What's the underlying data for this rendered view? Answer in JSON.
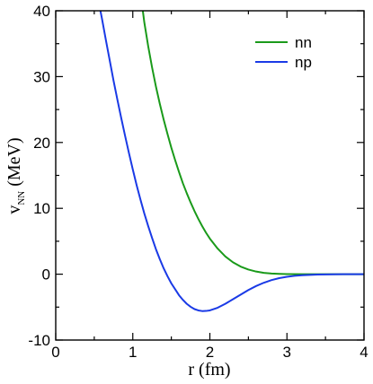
{
  "chart_data": {
    "type": "line",
    "title": "",
    "xlabel": "r (fm)",
    "ylabel_main": "v",
    "ylabel_sub": "NN",
    "ylabel_unit": " (MeV)",
    "xlim": [
      0,
      4
    ],
    "ylim": [
      -10,
      40
    ],
    "x_ticks": [
      0,
      1,
      2,
      3,
      4
    ],
    "y_ticks": [
      -10,
      0,
      10,
      20,
      30,
      40
    ],
    "x_minor_step": 0.5,
    "y_minor_step": 5,
    "grid": false,
    "legend_position": "top-right",
    "series": [
      {
        "name": "nn",
        "color": "#1a9a1a",
        "x": [
          1.13,
          1.15,
          1.2,
          1.25,
          1.3,
          1.35,
          1.4,
          1.45,
          1.5,
          1.55,
          1.6,
          1.65,
          1.7,
          1.75,
          1.8,
          1.85,
          1.9,
          1.95,
          2.0,
          2.1,
          2.2,
          2.3,
          2.4,
          2.5,
          2.6,
          2.7,
          2.8,
          2.9,
          3.0,
          3.2,
          3.4,
          3.6,
          3.8,
          4.0
        ],
        "y": [
          40.0,
          38.2,
          34.6,
          31.4,
          28.5,
          25.9,
          23.5,
          21.3,
          19.2,
          17.3,
          15.5,
          13.8,
          12.3,
          10.9,
          9.6,
          8.4,
          7.3,
          6.3,
          5.4,
          3.9,
          2.7,
          1.8,
          1.15,
          0.7,
          0.4,
          0.2,
          0.1,
          0.05,
          0.02,
          0.0,
          0.0,
          0.0,
          0.0,
          0.0
        ]
      },
      {
        "name": "np",
        "color": "#1a3ae6",
        "x": [
          0.58,
          0.6,
          0.65,
          0.7,
          0.75,
          0.8,
          0.85,
          0.9,
          0.95,
          1.0,
          1.05,
          1.1,
          1.15,
          1.2,
          1.25,
          1.3,
          1.35,
          1.4,
          1.45,
          1.5,
          1.55,
          1.6,
          1.65,
          1.7,
          1.75,
          1.8,
          1.85,
          1.9,
          1.95,
          2.0,
          2.1,
          2.2,
          2.3,
          2.4,
          2.5,
          2.6,
          2.7,
          2.8,
          2.9,
          3.0,
          3.1,
          3.2,
          3.3,
          3.4,
          3.6,
          3.8,
          4.0
        ],
        "y": [
          40.0,
          38.8,
          35.6,
          32.5,
          29.4,
          26.5,
          23.7,
          21.0,
          18.4,
          15.9,
          13.5,
          11.3,
          9.2,
          7.3,
          5.5,
          3.8,
          2.3,
          0.9,
          -0.3,
          -1.4,
          -2.3,
          -3.2,
          -3.9,
          -4.5,
          -4.95,
          -5.3,
          -5.5,
          -5.6,
          -5.58,
          -5.5,
          -5.1,
          -4.5,
          -3.8,
          -3.1,
          -2.4,
          -1.8,
          -1.3,
          -0.9,
          -0.6,
          -0.4,
          -0.25,
          -0.15,
          -0.1,
          -0.05,
          -0.02,
          0.0,
          0.0
        ]
      }
    ]
  }
}
